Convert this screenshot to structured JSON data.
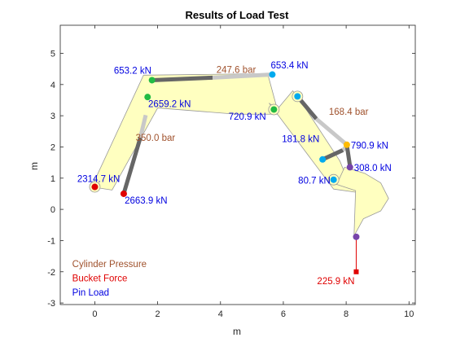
{
  "chart_data": {
    "type": "diagram-plot",
    "title": "Results of Load Test",
    "xlabel": "m",
    "ylabel": "m",
    "xlim": [
      -1.1,
      10.2
    ],
    "ylim": [
      -3.05,
      5.9
    ],
    "xticks": [
      0,
      2,
      4,
      6,
      8,
      10
    ],
    "yticks": [
      -3,
      -2,
      -1,
      0,
      1,
      2,
      3,
      4,
      5
    ],
    "grid": false,
    "colors": {
      "cylinder_pressure": "#a0522d",
      "bucket_force": "#e00000",
      "pin_load": "#0000e0",
      "body_fill": "#ffffc0",
      "body_edge": "#999999",
      "piston_dark": "#666666",
      "piston_light": "#c8c8c8"
    },
    "bodies": [
      {
        "name": "boom",
        "outline": [
          [
            -0.1,
            0.72
          ],
          [
            1.55,
            4.3
          ],
          [
            5.5,
            4.35
          ],
          [
            5.85,
            3.05
          ],
          [
            4.5,
            3.05
          ],
          [
            2.0,
            3.25
          ],
          [
            0.55,
            0.62
          ]
        ]
      },
      {
        "name": "arm",
        "outline": [
          [
            5.55,
            3.4
          ],
          [
            5.8,
            3.2
          ],
          [
            6.3,
            3.8
          ],
          [
            6.6,
            3.4
          ],
          [
            7.8,
            1.55
          ],
          [
            8.0,
            1.05
          ],
          [
            8.6,
            1.15
          ],
          [
            8.3,
            0.55
          ],
          [
            7.6,
            0.65
          ]
        ]
      },
      {
        "name": "bucket",
        "outline": [
          [
            7.95,
            1.35
          ],
          [
            8.6,
            1.15
          ],
          [
            9.1,
            0.85
          ],
          [
            9.35,
            0.35
          ],
          [
            9.1,
            -0.05
          ],
          [
            8.55,
            -0.3
          ],
          [
            8.25,
            -0.85
          ],
          [
            8.3,
            0.6
          ],
          [
            7.7,
            0.8
          ]
        ]
      }
    ],
    "cylinders": [
      {
        "name": "lift-cylinder",
        "rod": [
          [
            0.92,
            0.5
          ],
          [
            1.45,
            2.3
          ]
        ],
        "barrel": [
          [
            1.45,
            2.3
          ],
          [
            1.62,
            3.02
          ]
        ]
      },
      {
        "name": "stick-cylinder",
        "rod": [
          [
            1.82,
            4.14
          ],
          [
            3.75,
            4.22
          ]
        ],
        "barrel": [
          [
            3.75,
            4.22
          ],
          [
            5.65,
            4.32
          ]
        ]
      },
      {
        "name": "bucket-cylinder",
        "rod": [
          [
            6.45,
            3.62
          ],
          [
            7.05,
            2.9
          ]
        ],
        "barrel": [
          [
            7.05,
            2.9
          ],
          [
            8.02,
            2.07
          ]
        ]
      },
      {
        "name": "link-a",
        "rod": [
          [
            7.25,
            1.6
          ],
          [
            7.9,
            1.9
          ]
        ],
        "barrel": [
          [
            7.9,
            1.9
          ],
          [
            8.0,
            2.0
          ]
        ]
      },
      {
        "name": "link-b",
        "rod": [
          [
            8.02,
            2.07
          ],
          [
            8.12,
            1.4
          ]
        ],
        "barrel": [
          [
            8.12,
            1.4
          ],
          [
            8.15,
            1.35
          ]
        ]
      }
    ],
    "pins": [
      {
        "x": 0.0,
        "y": 0.72,
        "color": "#e00000",
        "ring": true
      },
      {
        "x": 0.92,
        "y": 0.5,
        "color": "#e00000",
        "ring": false
      },
      {
        "x": 1.82,
        "y": 4.14,
        "color": "#22bb44",
        "ring": false
      },
      {
        "x": 1.68,
        "y": 3.6,
        "color": "#22bb44",
        "ring": false
      },
      {
        "x": 5.65,
        "y": 4.32,
        "color": "#00aaee",
        "ring": false
      },
      {
        "x": 5.7,
        "y": 3.2,
        "color": "#22bb44",
        "ring": true
      },
      {
        "x": 6.45,
        "y": 3.62,
        "color": "#00aaee",
        "ring": true
      },
      {
        "x": 8.02,
        "y": 2.07,
        "color": "#ffbb00",
        "ring": false
      },
      {
        "x": 7.25,
        "y": 1.6,
        "color": "#00aaee",
        "ring": false
      },
      {
        "x": 8.12,
        "y": 1.35,
        "color": "#7744aa",
        "ring": false
      },
      {
        "x": 7.6,
        "y": 0.95,
        "color": "#00aaee",
        "ring": true
      },
      {
        "x": 8.32,
        "y": -0.88,
        "color": "#7744aa",
        "ring": false
      }
    ],
    "bucket_force_vector": {
      "from": [
        8.32,
        -0.88
      ],
      "to": [
        8.32,
        -2.0
      ],
      "label": "225.9 kN"
    },
    "annotations": [
      {
        "text": "247.6 bar",
        "x": 4.5,
        "y": 4.38,
        "type": "cylinder_pressure",
        "anchor": "middle"
      },
      {
        "text": "350.0 bar",
        "x": 1.3,
        "y": 2.2,
        "type": "cylinder_pressure",
        "anchor": "start"
      },
      {
        "text": "168.4 bar",
        "x": 7.45,
        "y": 3.03,
        "type": "cylinder_pressure",
        "anchor": "start"
      },
      {
        "text": "653.2 kN",
        "x": 1.8,
        "y": 4.35,
        "type": "pin_load",
        "anchor": "end"
      },
      {
        "text": "2659.2 kN",
        "x": 1.7,
        "y": 3.28,
        "type": "pin_load",
        "anchor": "start"
      },
      {
        "text": "653.4 kN",
        "x": 5.6,
        "y": 4.52,
        "type": "pin_load",
        "anchor": "start"
      },
      {
        "text": "720.9 kN",
        "x": 5.45,
        "y": 2.87,
        "type": "pin_load",
        "anchor": "end"
      },
      {
        "text": "2314.7 kN",
        "x": 0.8,
        "y": 0.88,
        "type": "pin_load",
        "anchor": "end"
      },
      {
        "text": "2663.9 kN",
        "x": 0.95,
        "y": 0.18,
        "type": "pin_load",
        "anchor": "start"
      },
      {
        "text": "790.9 kN",
        "x": 8.15,
        "y": 1.95,
        "type": "pin_load",
        "anchor": "start"
      },
      {
        "text": "181.8 kN",
        "x": 7.15,
        "y": 2.15,
        "type": "pin_load",
        "anchor": "end"
      },
      {
        "text": "308.0 kN",
        "x": 8.25,
        "y": 1.23,
        "type": "pin_load",
        "anchor": "start"
      },
      {
        "text": "80.7 kN",
        "x": 7.5,
        "y": 0.82,
        "type": "pin_load",
        "anchor": "end"
      }
    ],
    "legend": {
      "placement": "bottom-left",
      "entries": [
        {
          "text": "Cylinder Pressure",
          "type": "cylinder_pressure"
        },
        {
          "text": "Bucket Force",
          "type": "bucket_force"
        },
        {
          "text": "Pin Load",
          "type": "pin_load"
        }
      ]
    }
  }
}
